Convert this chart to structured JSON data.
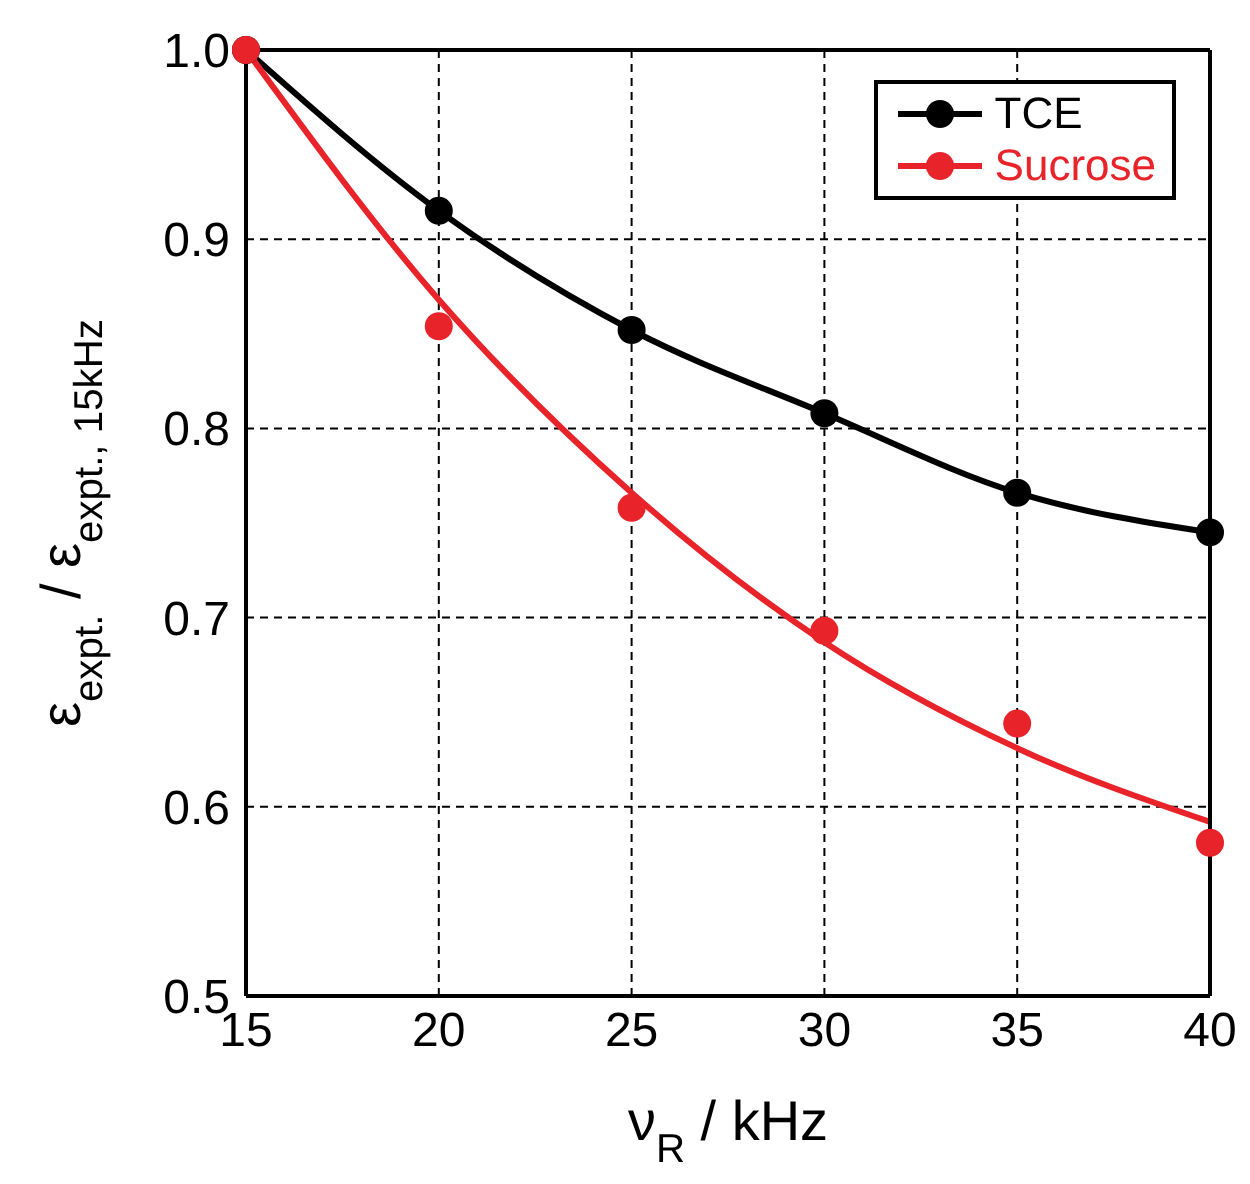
{
  "chart_data": {
    "type": "line",
    "xlabel": "ν$_{R}$ / kHz",
    "ylabel": "ε$_{expt.}$ / ε$_{expt., 15kHz}$",
    "x": [
      15,
      20,
      25,
      30,
      35,
      40
    ],
    "series": [
      {
        "name": "TCE",
        "color": "#000000",
        "marker": "circle",
        "values": [
          1.0,
          0.915,
          0.852,
          0.808,
          0.766,
          0.745
        ]
      },
      {
        "name": "Sucrose",
        "color": "#e8232a",
        "type": "scatter",
        "marker": "circle",
        "values": [
          1.0,
          0.854,
          0.758,
          0.693,
          0.644,
          0.581
        ]
      },
      {
        "color": "#e8232a",
        "marker": "none",
        "values": [
          1.0,
          0.868,
          0.766,
          0.687,
          0.631,
          0.592
        ]
      }
    ],
    "xlim": [
      15,
      40
    ],
    "xticks": [
      15,
      20,
      25,
      30,
      35,
      40
    ],
    "ylim": [
      0.5,
      1.0
    ],
    "yticks": [
      {
        "value": 0.5,
        "label": "0.5"
      },
      {
        "value": 0.6,
        "label": "0.6"
      },
      {
        "value": 0.7,
        "label": "0.7"
      },
      {
        "value": 0.8,
        "label": "0.8"
      },
      {
        "value": 0.9,
        "label": "0.9"
      },
      {
        "value": 1.0,
        "label": "1.0"
      }
    ],
    "grid": true,
    "legend": "top right",
    "line_style": "solid"
  }
}
